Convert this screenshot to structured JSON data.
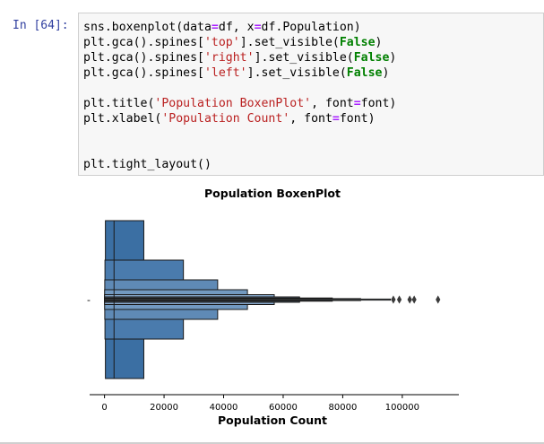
{
  "cell": {
    "prompt": "In [64]:",
    "code_lines": [
      [
        {
          "t": "sns.boxenplot(data"
        },
        {
          "t": "=",
          "c": "op"
        },
        {
          "t": "df, x"
        },
        {
          "t": "=",
          "c": "op"
        },
        {
          "t": "df.Population)"
        }
      ],
      [
        {
          "t": "plt.gca().spines["
        },
        {
          "t": "'top'",
          "c": "str"
        },
        {
          "t": "].set_visible("
        },
        {
          "t": "False",
          "c": "kw"
        },
        {
          "t": ")"
        }
      ],
      [
        {
          "t": "plt.gca().spines["
        },
        {
          "t": "'right'",
          "c": "str"
        },
        {
          "t": "].set_visible("
        },
        {
          "t": "False",
          "c": "kw"
        },
        {
          "t": ")"
        }
      ],
      [
        {
          "t": "plt.gca().spines["
        },
        {
          "t": "'left'",
          "c": "str"
        },
        {
          "t": "].set_visible("
        },
        {
          "t": "False",
          "c": "kw"
        },
        {
          "t": ")"
        }
      ],
      [],
      [
        {
          "t": "plt.title("
        },
        {
          "t": "'Population BoxenPlot'",
          "c": "str"
        },
        {
          "t": ", font"
        },
        {
          "t": "=",
          "c": "op"
        },
        {
          "t": "font)"
        }
      ],
      [
        {
          "t": "plt.xlabel("
        },
        {
          "t": "'Population Count'",
          "c": "str"
        },
        {
          "t": ", font"
        },
        {
          "t": "=",
          "c": "op"
        },
        {
          "t": "font)"
        }
      ],
      [],
      [],
      [
        {
          "t": "plt.tight_layout()"
        }
      ]
    ]
  },
  "chart_data": {
    "type": "boxen",
    "title": "Population BoxenPlot",
    "xlabel": "Population Count",
    "ylabel": "",
    "y_tick_label": "-",
    "xlim": [
      -5000,
      119000
    ],
    "xticks": [
      0,
      20000,
      40000,
      60000,
      80000,
      100000
    ],
    "xtick_labels": [
      "0",
      "20000",
      "40000",
      "60000",
      "80000",
      "100000"
    ],
    "median": 3200,
    "letter_values": [
      {
        "lo": 300,
        "hi": 13200,
        "color": "#3b6fa3"
      },
      {
        "lo": 150,
        "hi": 26500,
        "color": "#4a7bad"
      },
      {
        "lo": 80,
        "hi": 38000,
        "color": "#5f8ab6"
      },
      {
        "lo": 40,
        "hi": 48000,
        "color": "#7299c0"
      },
      {
        "lo": 20,
        "hi": 57000,
        "color": "#86a7c9"
      },
      {
        "lo": 10,
        "hi": 65500,
        "color": "#9ab5d2"
      },
      {
        "lo": 5,
        "hi": 76500,
        "color": "#aec4db"
      },
      {
        "lo": 2,
        "hi": 86000,
        "color": "#c2d2e4"
      },
      {
        "lo": 1,
        "hi": 96000,
        "color": "#d6e1ed"
      }
    ],
    "outliers": [
      97000,
      99000,
      102500,
      104000,
      112000
    ],
    "colors": {
      "box_edge": "#1a1a1a",
      "outlier": "#3a3a3a",
      "axis": "#000000"
    }
  }
}
